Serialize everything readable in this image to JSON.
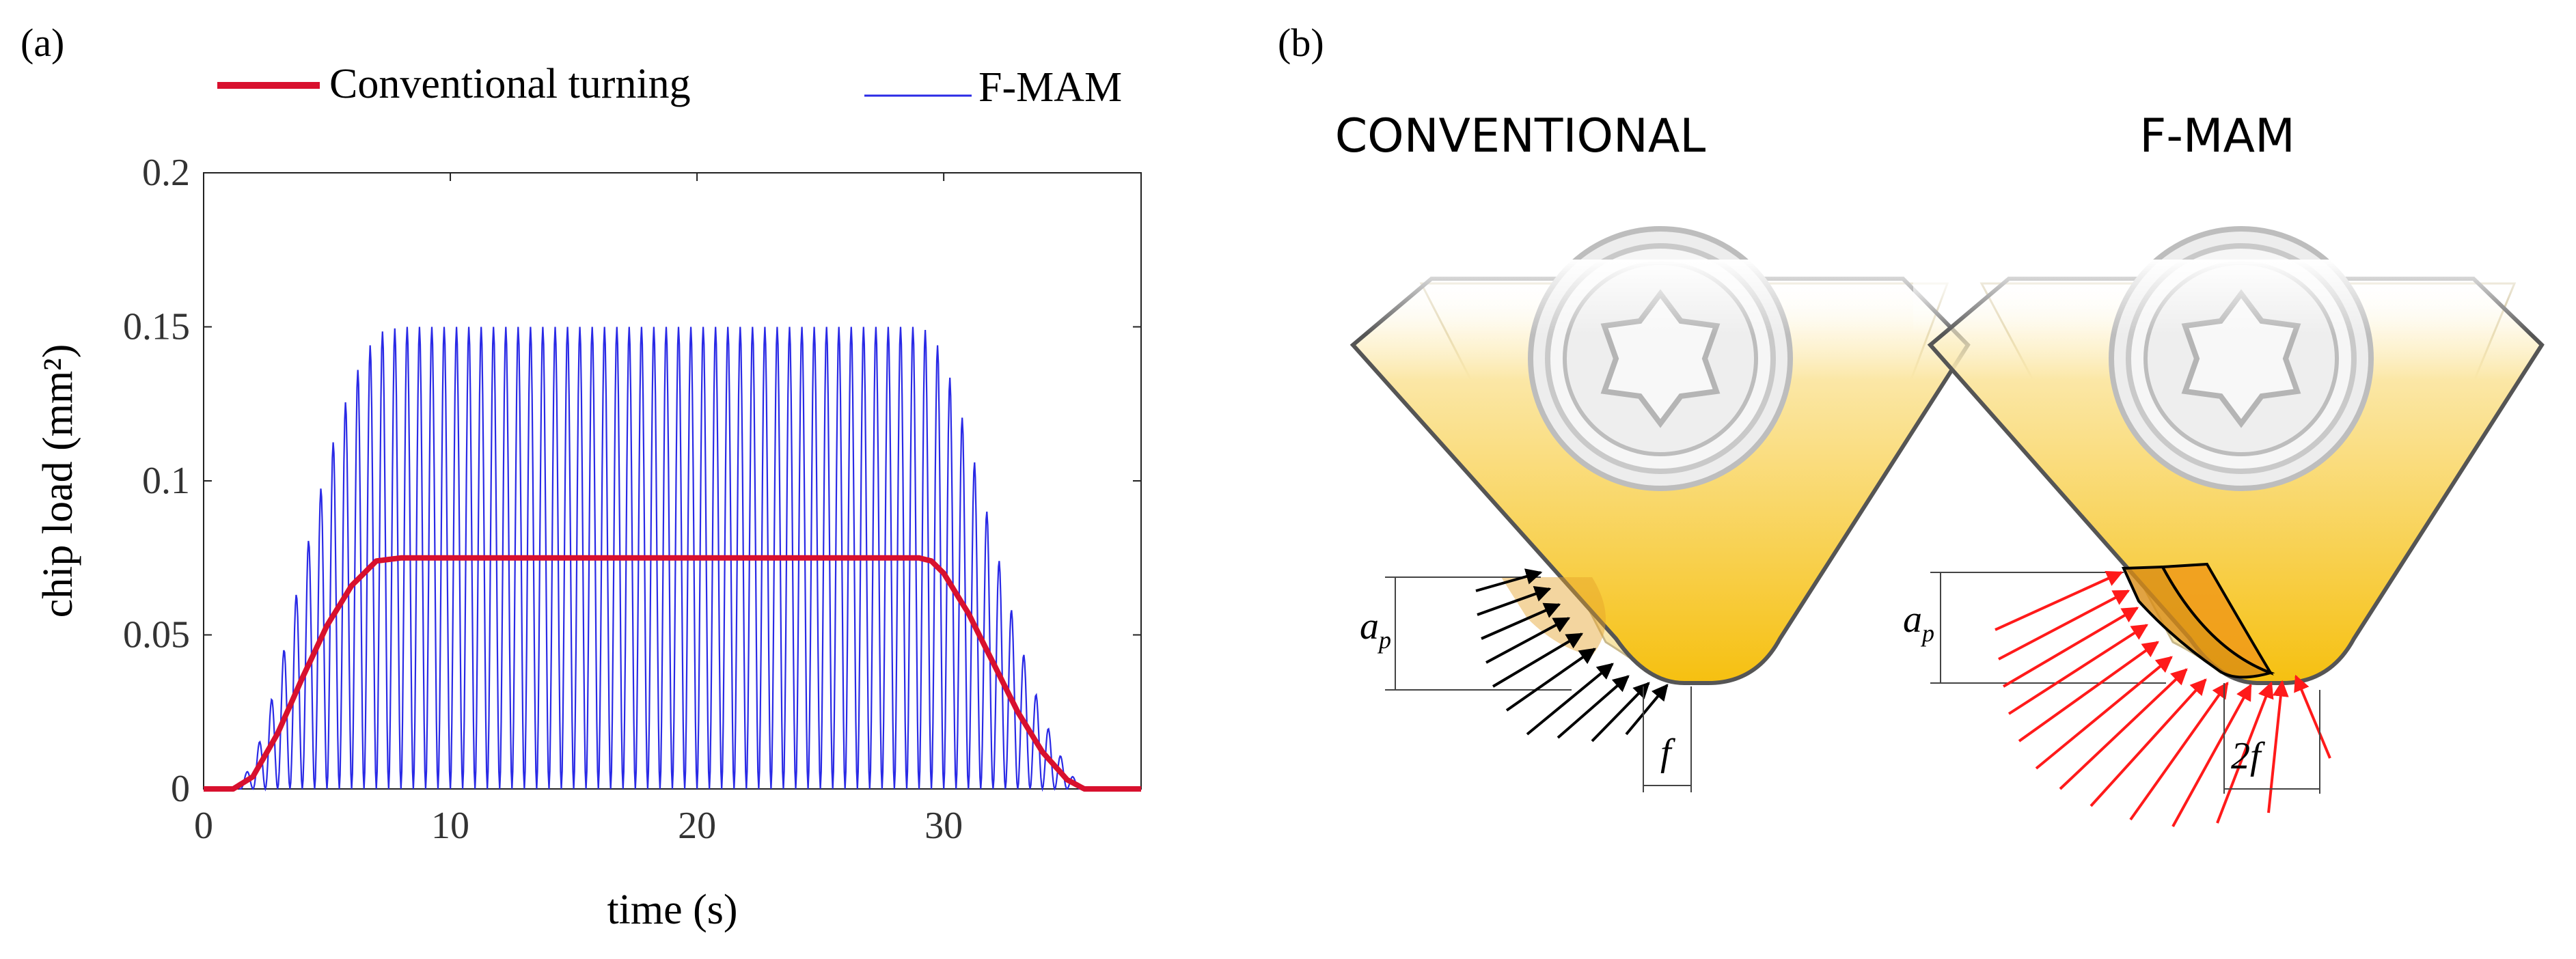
{
  "panel_a": {
    "label": "(a)",
    "legend": [
      "Conventional turning",
      "F-MAM"
    ]
  },
  "panel_b": {
    "label": "(b)",
    "conventional_title": "CONVENTIONAL",
    "fmam_title": "F-MAM",
    "ap_label": "a",
    "ap_subscript": "p",
    "f_label": "f",
    "two_f_label": "2f"
  },
  "colors": {
    "conventional": "#d8102e",
    "fmam": "#2a2ae6",
    "tool_yellow": "#f7c21a",
    "chip_orange": "#e8951a",
    "force_red": "#ff1a1a",
    "force_black": "#000000"
  },
  "chart_data": {
    "type": "line",
    "title": "",
    "xlabel": "time (s)",
    "ylabel": "chip load (mm²)",
    "xlim": [
      0,
      38
    ],
    "ylim": [
      0,
      0.2
    ],
    "xticks": [
      0,
      10,
      20,
      30
    ],
    "yticks": [
      "0",
      "0.05",
      "0.1",
      "0.15",
      "0.2"
    ],
    "legend_position": "top",
    "series": [
      {
        "name": "Conventional turning",
        "x": [
          0,
          1.2,
          2,
          3,
          4,
          5,
          6,
          7,
          8,
          15,
          20,
          25,
          29,
          29.5,
          30,
          31,
          32,
          33,
          34,
          35,
          35.7,
          38
        ],
        "y": [
          0,
          0,
          0.004,
          0.018,
          0.036,
          0.053,
          0.066,
          0.074,
          0.075,
          0.075,
          0.075,
          0.075,
          0.075,
          0.074,
          0.07,
          0.057,
          0.041,
          0.025,
          0.012,
          0.003,
          0,
          0
        ]
      },
      {
        "name": "F-MAM",
        "type": "oscillating",
        "oscillation_period_s": 0.5,
        "x": [
          0,
          1.2,
          2,
          3,
          4,
          5,
          6,
          7,
          8,
          15,
          20,
          25,
          29,
          29.5,
          30,
          31,
          32,
          33,
          34,
          35,
          35.7,
          38
        ],
        "y_peak": [
          0,
          0,
          0.008,
          0.036,
          0.072,
          0.106,
          0.132,
          0.148,
          0.15,
          0.15,
          0.15,
          0.15,
          0.15,
          0.148,
          0.14,
          0.114,
          0.082,
          0.05,
          0.024,
          0.006,
          0,
          0
        ]
      }
    ]
  }
}
